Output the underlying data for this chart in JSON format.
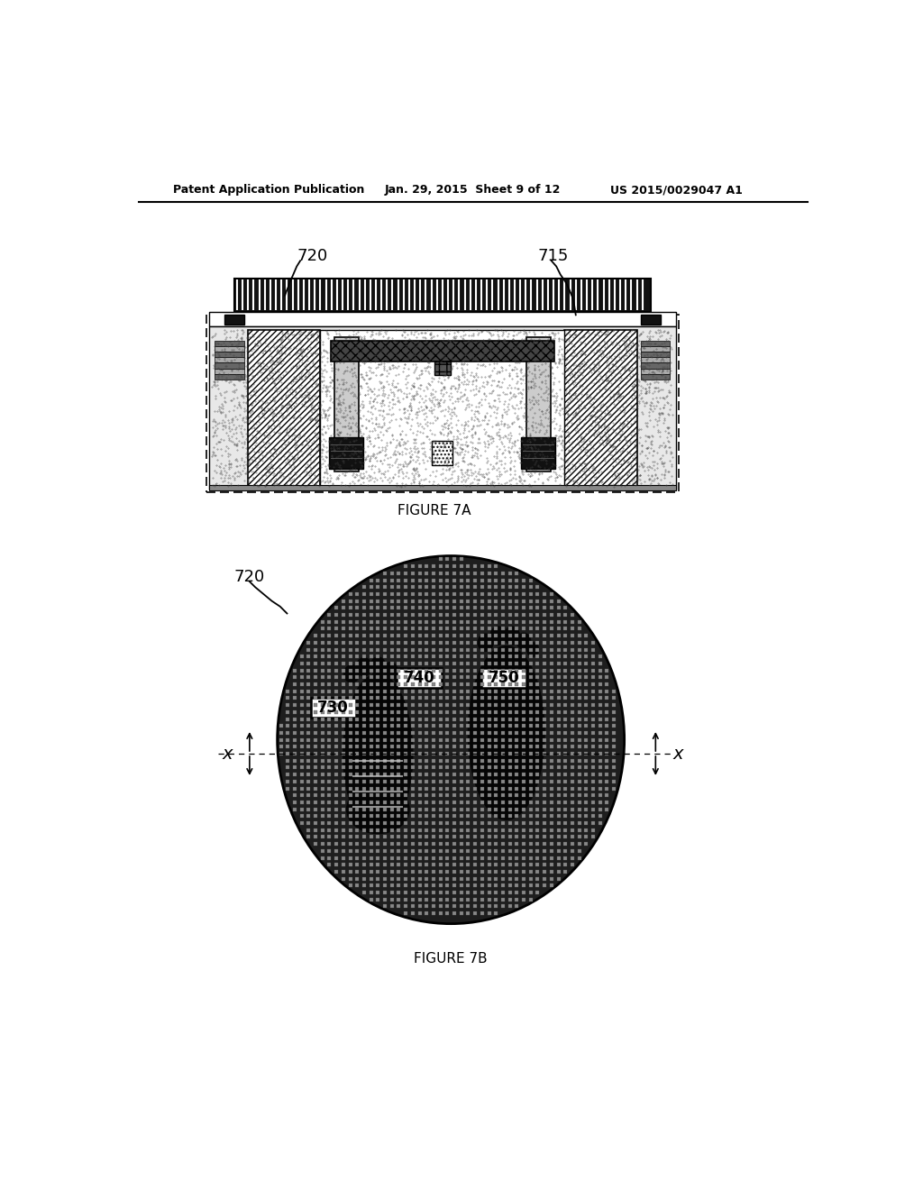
{
  "title_left": "Patent Application Publication",
  "title_mid": "Jan. 29, 2015  Sheet 9 of 12",
  "title_right": "US 2015/0029047 A1",
  "fig7a_label": "FIGURE 7A",
  "fig7b_label": "FIGURE 7B",
  "label_720_top": "720",
  "label_715_top": "715",
  "label_720_bot": "720",
  "label_730": "730",
  "label_740": "740",
  "label_750": "750",
  "label_x_left": "x",
  "label_x_right": "x",
  "bg_color": "#ffffff",
  "fg_color": "#000000"
}
